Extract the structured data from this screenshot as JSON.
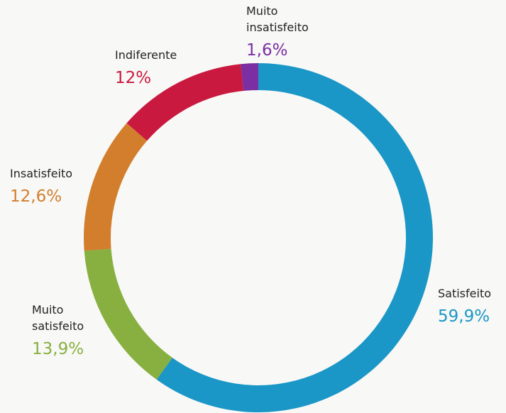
{
  "chart_data": {
    "type": "donut",
    "categories": [
      "Satisfeito",
      "Muito satisfeito",
      "Insatisfeito",
      "Indiferente",
      "Muito insatisfeito"
    ],
    "values": [
      59.9,
      13.9,
      12.6,
      12,
      1.6
    ],
    "value_labels": [
      "59,9%",
      "13,9%",
      "12,6%",
      "12%",
      "1,6%"
    ],
    "colors": [
      "#1a97c6",
      "#88b040",
      "#d27e2c",
      "#c9193f",
      "#7b2fa2"
    ]
  }
}
